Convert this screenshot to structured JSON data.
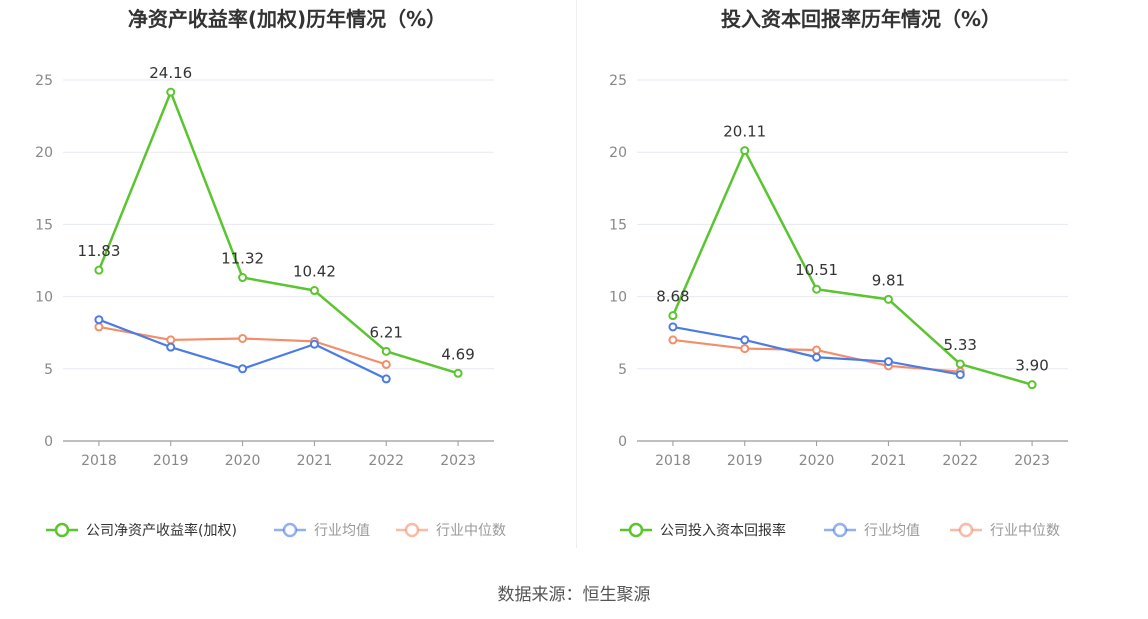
{
  "chart_data": [
    {
      "type": "line",
      "title": "净资产收益率(加权)历年情况（%）",
      "categories": [
        "2018",
        "2019",
        "2020",
        "2021",
        "2022",
        "2023"
      ],
      "ylim": [
        0,
        25
      ],
      "yticks": [
        0,
        5,
        10,
        15,
        20,
        25
      ],
      "grid": true,
      "legend": "bottom",
      "series": [
        {
          "name": "公司净资产收益率(加权)",
          "color": "#5ac52e",
          "values": [
            11.83,
            24.16,
            11.32,
            10.42,
            6.21,
            4.69
          ],
          "labels": [
            "11.83",
            "24.16",
            "11.32",
            "10.42",
            "6.21",
            "4.69"
          ]
        },
        {
          "name": "行业均值",
          "color": "#4b7be5",
          "values": [
            8.4,
            6.5,
            5.0,
            6.7,
            4.3,
            null
          ]
        },
        {
          "name": "行业中位数",
          "color": "#f28e6a",
          "values": [
            7.9,
            7.0,
            7.1,
            6.9,
            5.3,
            null
          ]
        }
      ]
    },
    {
      "type": "line",
      "title": "投入资本回报率历年情况（%）",
      "categories": [
        "2018",
        "2019",
        "2020",
        "2021",
        "2022",
        "2023"
      ],
      "ylim": [
        0,
        25
      ],
      "yticks": [
        0,
        5,
        10,
        15,
        20,
        25
      ],
      "grid": true,
      "legend": "bottom",
      "series": [
        {
          "name": "公司投入资本回报率",
          "color": "#5ac52e",
          "values": [
            8.68,
            20.11,
            10.51,
            9.81,
            5.33,
            3.9
          ],
          "labels": [
            "8.68",
            "20.11",
            "10.51",
            "9.81",
            "5.33",
            "3.90"
          ]
        },
        {
          "name": "行业均值",
          "color": "#4b7be5",
          "values": [
            7.9,
            7.0,
            5.8,
            5.5,
            4.6,
            null
          ]
        },
        {
          "name": "行业中位数",
          "color": "#f28e6a",
          "values": [
            7.0,
            6.4,
            6.3,
            5.2,
            4.8,
            null
          ]
        }
      ]
    }
  ],
  "source": "数据来源：恒生聚源"
}
